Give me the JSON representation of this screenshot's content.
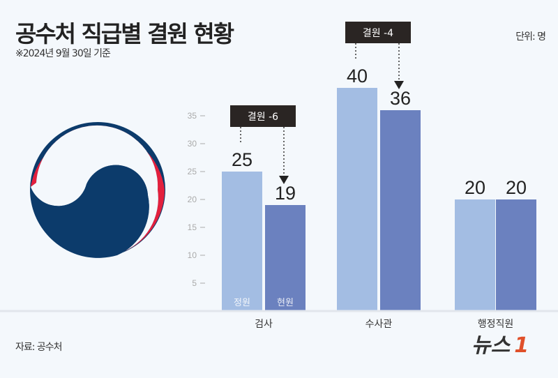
{
  "title": "공수처 직급별 결원 현황",
  "subtitle": "※2024년 9월 30일 기준",
  "unit": "단위: 명",
  "source": "자료: 공수처",
  "logo_text": "뉴스1",
  "colors": {
    "정원": "#a3bde3",
    "현원": "#6b81bf",
    "annotation_box": "#2a2523",
    "emblem_blue": "#0c3b6b",
    "emblem_red": "#e3203d",
    "logo_orange": "#e0502a"
  },
  "emblem": "government-taegeuk-emblem",
  "chart_data": {
    "type": "bar",
    "categories": [
      "검사",
      "수사관",
      "행정직원"
    ],
    "series": [
      {
        "name": "정원",
        "values": [
          25,
          40,
          20
        ]
      },
      {
        "name": "현원",
        "values": [
          19,
          36,
          20
        ]
      }
    ],
    "ylim": [
      0,
      40
    ],
    "yticks": [
      5,
      10,
      15,
      20,
      25,
      30,
      35
    ],
    "grid": false,
    "legend": "series names printed inside first group's bars",
    "annotations": [
      {
        "category": "검사",
        "text": "결원 -6"
      },
      {
        "category": "수사관",
        "text": "결원 -4"
      }
    ]
  }
}
